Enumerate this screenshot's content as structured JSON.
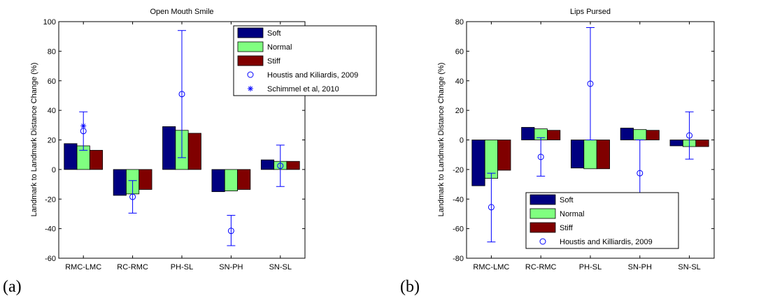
{
  "colors": {
    "soft": "#000080",
    "normal": "#80ff80",
    "stiff": "#800000",
    "marker": "#0000ff"
  },
  "chart_data": [
    {
      "type": "bar",
      "panel_label": "(a)",
      "title": "Open Mouth Smile",
      "ylabel": "Landmark to Landmark Distance Change (%)",
      "xlabel": "",
      "ylim": [
        -60,
        100
      ],
      "yticks": [
        -60,
        -40,
        -20,
        0,
        20,
        40,
        60,
        80,
        100
      ],
      "categories": [
        "RMC-LMC",
        "RC-RMC",
        "PH-SL",
        "SN-PH",
        "SN-SL"
      ],
      "series": [
        {
          "name": "Soft",
          "values": [
            17.5,
            -17.5,
            29,
            -15,
            6.5
          ]
        },
        {
          "name": "Normal",
          "values": [
            16,
            -16.5,
            26.5,
            -14.5,
            5.5
          ]
        },
        {
          "name": "Stiff",
          "values": [
            13,
            -13.5,
            24.5,
            -13.5,
            5.5
          ]
        }
      ],
      "reference_series": [
        {
          "name": "Houstis and Kiliardis, 2009",
          "marker": "circle",
          "values": [
            26,
            -18.5,
            51,
            -41.5,
            2.5
          ],
          "lower": [
            13,
            -29.5,
            8,
            -51.5,
            -11.5
          ],
          "upper": [
            39,
            -7.5,
            94,
            -31,
            16.5
          ]
        },
        {
          "name": "Schimmel et al, 2010",
          "marker": "star",
          "values": [
            29.5,
            null,
            null,
            null,
            null
          ]
        }
      ],
      "legend_position": "top-right"
    },
    {
      "type": "bar",
      "panel_label": "(b)",
      "title": "Lips Pursed",
      "ylabel": "Landmark to Landmark Distance Change (%)",
      "xlabel": "",
      "ylim": [
        -80,
        80
      ],
      "yticks": [
        -80,
        -60,
        -40,
        -20,
        0,
        20,
        40,
        60,
        80
      ],
      "categories": [
        "RMC-LMC",
        "RC-RMC",
        "PH-SL",
        "SN-PH",
        "SN-SL"
      ],
      "series": [
        {
          "name": "Soft",
          "values": [
            -31,
            8.5,
            -19,
            8,
            -4
          ]
        },
        {
          "name": "Normal",
          "values": [
            -26,
            7.5,
            -19.5,
            7,
            -4.5
          ]
        },
        {
          "name": "Stiff",
          "values": [
            -20.5,
            6.5,
            -19.5,
            6.5,
            -4.5
          ]
        }
      ],
      "reference_series": [
        {
          "name": "Houstis and Killiardis, 2009",
          "marker": "circle",
          "values": [
            -45.5,
            -11.5,
            38,
            -22.5,
            3
          ],
          "lower": [
            -69,
            -24.5,
            0,
            -44.5,
            -13
          ],
          "upper": [
            -22.5,
            1.5,
            76,
            0,
            19
          ]
        }
      ],
      "legend_position": "bottom-left"
    }
  ]
}
